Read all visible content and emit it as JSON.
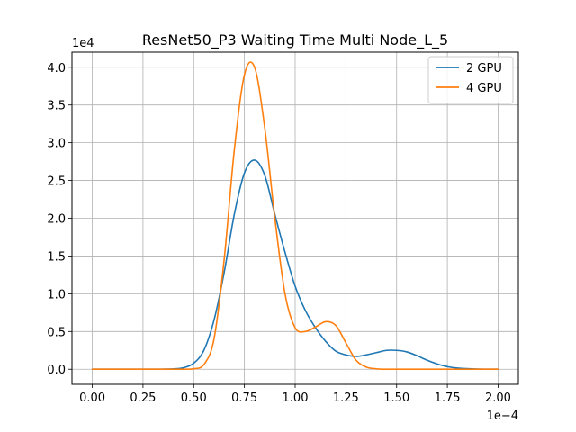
{
  "chart_data": {
    "type": "line",
    "title": "ResNet50_P3 Waiting Time Multi Node_L_5",
    "xlabel": "",
    "ylabel": "",
    "xlim": [
      -1e-05,
      0.00021
    ],
    "ylim": [
      -2000,
      42000
    ],
    "x_ticks": [
      0,
      2.5e-05,
      5e-05,
      7.5e-05,
      0.0001,
      0.000125,
      0.00015,
      0.000175,
      0.0002
    ],
    "x_tick_labels": [
      "0.00",
      "0.25",
      "0.50",
      "0.75",
      "1.00",
      "1.25",
      "1.50",
      "1.75",
      "2.00"
    ],
    "x_offset_text": "1e−4",
    "y_ticks": [
      0,
      5000,
      10000,
      15000,
      20000,
      25000,
      30000,
      35000,
      40000
    ],
    "y_tick_labels": [
      "0.0",
      "0.5",
      "1.0",
      "1.5",
      "2.0",
      "2.5",
      "3.0",
      "3.5",
      "4.0"
    ],
    "y_offset_text": "1e4",
    "grid": true,
    "legend_position": "top-right",
    "x": [
      0,
      1e-05,
      2e-05,
      3e-05,
      4e-05,
      4.5e-05,
      5e-05,
      5.5e-05,
      6e-05,
      6.5e-05,
      7e-05,
      7.5e-05,
      8e-05,
      8.5e-05,
      9e-05,
      9.5e-05,
      0.0001,
      0.000105,
      0.00011,
      0.000115,
      0.00012,
      0.000125,
      0.00013,
      0.000135,
      0.00014,
      0.000145,
      0.00015,
      0.000155,
      0.00016,
      0.000165,
      0.00017,
      0.000175,
      0.00018,
      0.00019,
      0.0002
    ],
    "series": [
      {
        "name": "2 GPU",
        "color": "#1f77b4",
        "values": [
          0,
          0,
          0,
          0,
          50,
          200,
          800,
          2500,
          6500,
          12800,
          20500,
          26000,
          27700,
          25700,
          20500,
          15500,
          11000,
          7800,
          5500,
          3700,
          2400,
          1900,
          1700,
          1900,
          2200,
          2500,
          2500,
          2300,
          1800,
          1200,
          700,
          350,
          150,
          20,
          0
        ]
      },
      {
        "name": "4 GPU",
        "color": "#ff7f0e",
        "values": [
          0,
          0,
          0,
          0,
          0,
          0,
          50,
          600,
          4000,
          14500,
          29000,
          39000,
          40000,
          32000,
          20000,
          10000,
          5500,
          5000,
          5600,
          6300,
          5800,
          3500,
          1200,
          300,
          50,
          0,
          0,
          0,
          0,
          0,
          0,
          0,
          0,
          0,
          0
        ]
      }
    ]
  }
}
